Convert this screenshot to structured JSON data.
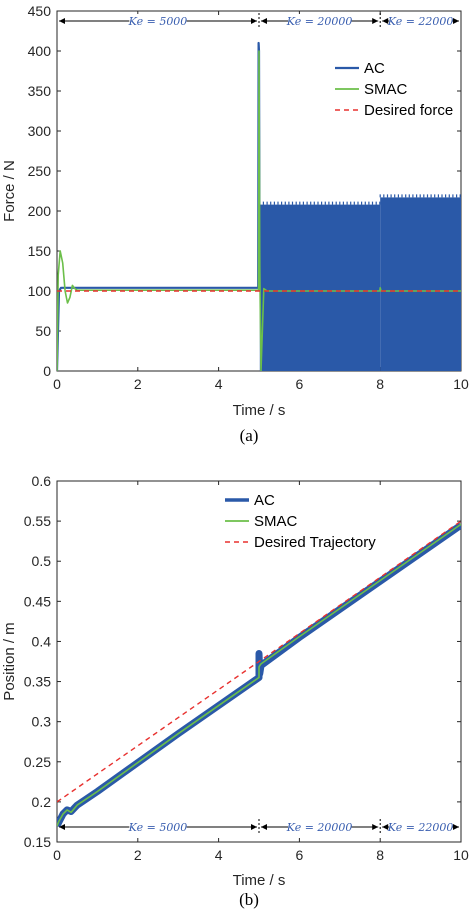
{
  "colors": {
    "ac": "#2a59a8",
    "smac": "#6cbf4a",
    "desired": "#e8312f",
    "segment_text": "#3a5fb0"
  },
  "chart_data": [
    {
      "type": "line",
      "caption": "(a)",
      "xlabel": "Time / s",
      "ylabel": "Force / N",
      "xlim": [
        0,
        10
      ],
      "ylim": [
        0,
        450
      ],
      "xticks": [
        "0",
        "2",
        "4",
        "6",
        "8",
        "10"
      ],
      "yticks": [
        "0",
        "50",
        "100",
        "150",
        "200",
        "250",
        "300",
        "350",
        "400",
        "450"
      ],
      "grid": false,
      "legend_position": "top-right",
      "segments": [
        {
          "label": "Ke = 5000",
          "from": 0,
          "to": 5
        },
        {
          "label": "Ke = 20000",
          "from": 5,
          "to": 8
        },
        {
          "label": "Ke = 22000",
          "from": 8,
          "to": 10
        }
      ],
      "series": [
        {
          "name": "AC",
          "x": [
            0,
            0.02,
            0.05,
            0.1,
            0.2,
            1,
            3,
            4.98,
            4.99,
            5.0,
            5.01,
            5.015
          ],
          "y": [
            0,
            40,
            100,
            104,
            104,
            104,
            104,
            104,
            410,
            400,
            200,
            100
          ],
          "oscillation_band": [
            {
              "x": [
                5.02,
                8.0
              ],
              "low": 0,
              "high": 208
            },
            {
              "x": [
                8.0,
                10.0
              ],
              "low": 0,
              "high": 217
            }
          ]
        },
        {
          "name": "SMAC",
          "x": [
            0,
            0.03,
            0.08,
            0.14,
            0.2,
            0.26,
            0.32,
            0.38,
            0.44,
            0.5,
            0.7,
            1,
            3,
            4.99,
            5.0,
            5.02,
            5.05,
            5.12,
            5.2,
            6,
            7.99,
            8.0,
            8.02,
            8.06,
            10
          ],
          "y": [
            0,
            120,
            150,
            135,
            100,
            85,
            92,
            107,
            103,
            101,
            101,
            101,
            101,
            101,
            400,
            130,
            0,
            103,
            100,
            100,
            100,
            104,
            100,
            100,
            100
          ]
        },
        {
          "name": "Desired force",
          "x": [
            0,
            10
          ],
          "y": [
            100,
            100
          ],
          "style": "dashed"
        }
      ]
    },
    {
      "type": "line",
      "caption": "(b)",
      "xlabel": "Time / s",
      "ylabel": "Position / m",
      "xlim": [
        0,
        10
      ],
      "ylim": [
        0.15,
        0.6
      ],
      "xticks": [
        "0",
        "2",
        "4",
        "6",
        "8",
        "10"
      ],
      "yticks": [
        "0.15",
        "0.2",
        "0.25",
        "0.3",
        "0.35",
        "0.4",
        "0.45",
        "0.5",
        "0.55",
        "0.6"
      ],
      "grid": false,
      "legend_position": "top-center",
      "segments": [
        {
          "label": "Ke = 5000",
          "from": 0,
          "to": 5
        },
        {
          "label": "Ke = 20000",
          "from": 5,
          "to": 8
        },
        {
          "label": "Ke = 22000",
          "from": 8,
          "to": 10
        }
      ],
      "series": [
        {
          "name": "AC",
          "x": [
            0,
            0.05,
            0.15,
            0.25,
            0.35,
            0.5,
            1,
            3,
            5.0,
            5.0,
            5.02,
            5.05,
            6,
            8,
            10
          ],
          "y": [
            0.17,
            0.175,
            0.185,
            0.19,
            0.188,
            0.196,
            0.213,
            0.285,
            0.355,
            0.385,
            0.36,
            0.37,
            0.405,
            0.475,
            0.545
          ],
          "band_width": 0.008
        },
        {
          "name": "SMAC",
          "x": [
            0,
            0.05,
            0.15,
            0.25,
            0.35,
            0.5,
            1,
            3,
            5.0,
            5.0,
            5.02,
            5.05,
            6,
            8,
            10
          ],
          "y": [
            0.17,
            0.176,
            0.185,
            0.19,
            0.187,
            0.196,
            0.213,
            0.285,
            0.355,
            0.368,
            0.37,
            0.372,
            0.406,
            0.476,
            0.546
          ]
        },
        {
          "name": "Desired Trajectory",
          "x": [
            0,
            10
          ],
          "y": [
            0.2,
            0.55
          ],
          "style": "dashed"
        }
      ]
    }
  ]
}
